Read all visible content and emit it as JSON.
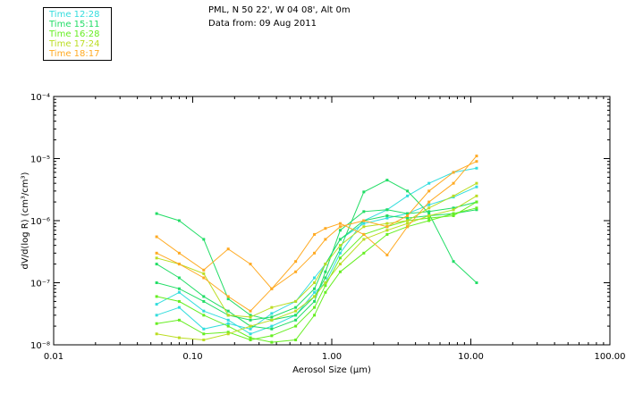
{
  "header": {
    "location": "PML, N 50 22', W 04 08', Alt 0m",
    "date_line": "Data from: 09 Aug 2011"
  },
  "legend": [
    {
      "label": "Time 12:28",
      "color": "#33dddd"
    },
    {
      "label": "Time 15:11",
      "color": "#22dd66"
    },
    {
      "label": "Time 16:28",
      "color": "#66ee22"
    },
    {
      "label": "Time 17:24",
      "color": "#bbdd22"
    },
    {
      "label": "Time 18:17",
      "color": "#ffaa22"
    }
  ],
  "chart_data": {
    "type": "line",
    "xscale": "log",
    "yscale": "log",
    "xlim": [
      0.01,
      100
    ],
    "ylim": [
      1e-08,
      0.0001
    ],
    "xlabel": "Aerosol Size (μm)",
    "ylabel": "dV/d(log R) (cm³/cm³)",
    "xticks": [
      "0.01",
      "0.10",
      "1.00",
      "10.00",
      "100.00"
    ],
    "yticks": [
      "10⁻⁸",
      "10⁻⁷",
      "10⁻⁶",
      "10⁻⁵",
      "10⁻⁴"
    ],
    "x": [
      0.055,
      0.08,
      0.12,
      0.18,
      0.26,
      0.37,
      0.55,
      0.75,
      0.9,
      1.15,
      1.7,
      2.5,
      3.5,
      5.0,
      7.5,
      11.0
    ],
    "series": [
      {
        "color": "#33dddd",
        "values": [
          4.5e-08,
          7e-08,
          3.5e-08,
          2.5e-08,
          1.5e-08,
          2e-08,
          3e-08,
          7e-08,
          1e-07,
          3e-07,
          1e-06,
          1.5e-06,
          2.5e-06,
          4e-06,
          6e-06,
          7e-06
        ]
      },
      {
        "color": "#33dddd",
        "values": [
          3e-08,
          4e-08,
          1.8e-08,
          2.2e-08,
          1.8e-08,
          3.2e-08,
          5e-08,
          1.2e-07,
          2e-07,
          5e-07,
          9e-07,
          1.1e-06,
          1.3e-06,
          1.8e-06,
          2.4e-06,
          3.5e-06
        ]
      },
      {
        "color": "#22dd66",
        "values": [
          1.3e-06,
          1e-06,
          5e-07,
          5.5e-08,
          3e-08,
          2.5e-08,
          3e-08,
          6e-08,
          1.2e-07,
          3.5e-07,
          2.9e-06,
          4.5e-06,
          3e-06,
          1.3e-06,
          2.2e-07,
          1e-07
        ]
      },
      {
        "color": "#22dd66",
        "values": [
          2e-07,
          1.2e-07,
          6e-08,
          3.5e-08,
          2e-08,
          1.8e-08,
          2.5e-08,
          5e-08,
          1.5e-07,
          7e-07,
          1.4e-06,
          1.5e-06,
          1.3e-06,
          1.4e-06,
          1.6e-06,
          2e-06
        ]
      },
      {
        "color": "#22dd66",
        "values": [
          1e-07,
          8e-08,
          5e-08,
          3e-08,
          2.5e-08,
          2.8e-08,
          4e-08,
          8e-08,
          2e-07,
          5e-07,
          1e-06,
          1.2e-06,
          1.1e-06,
          1.2e-06,
          1.3e-06,
          1.5e-06
        ]
      },
      {
        "color": "#66ee22",
        "values": [
          2.2e-08,
          2.5e-08,
          1.5e-08,
          1.6e-08,
          1.2e-08,
          1.4e-08,
          2e-08,
          4e-08,
          9e-08,
          2.5e-07,
          6e-07,
          8e-07,
          1e-06,
          1.1e-06,
          1.2e-06,
          2e-06
        ]
      },
      {
        "color": "#66ee22",
        "values": [
          6e-08,
          5e-08,
          3e-08,
          2e-08,
          1.3e-08,
          1.1e-08,
          1.2e-08,
          3e-08,
          7e-08,
          1.5e-07,
          3e-07,
          6e-07,
          8e-07,
          1e-06,
          1.3e-06,
          1.6e-06
        ]
      },
      {
        "color": "#bbdd22",
        "values": [
          2.5e-07,
          2e-07,
          1.4e-07,
          3e-08,
          2.8e-08,
          4e-08,
          5e-08,
          1e-07,
          2e-07,
          4e-07,
          8e-07,
          9e-07,
          1e-06,
          1.6e-06,
          2.5e-06,
          4e-06
        ]
      },
      {
        "color": "#bbdd22",
        "values": [
          1.5e-08,
          1.3e-08,
          1.2e-08,
          1.5e-08,
          2e-08,
          2.5e-08,
          3.5e-08,
          6e-08,
          1e-07,
          2e-07,
          5e-07,
          7e-07,
          9e-07,
          1.2e-06,
          1.5e-06,
          2.5e-06
        ]
      },
      {
        "color": "#ffaa22",
        "values": [
          5.5e-07,
          3e-07,
          1.6e-07,
          3.5e-07,
          2e-07,
          8e-08,
          2.2e-07,
          6e-07,
          7.5e-07,
          9e-07,
          6e-07,
          2.8e-07,
          8e-07,
          2e-06,
          4e-06,
          1.1e-05
        ]
      },
      {
        "color": "#ffaa22",
        "values": [
          3e-07,
          2e-07,
          1.2e-07,
          6e-08,
          3.5e-08,
          8e-08,
          1.5e-07,
          3e-07,
          5e-07,
          8e-07,
          1e-06,
          8e-07,
          1.2e-06,
          3e-06,
          6e-06,
          9e-06
        ]
      }
    ]
  }
}
